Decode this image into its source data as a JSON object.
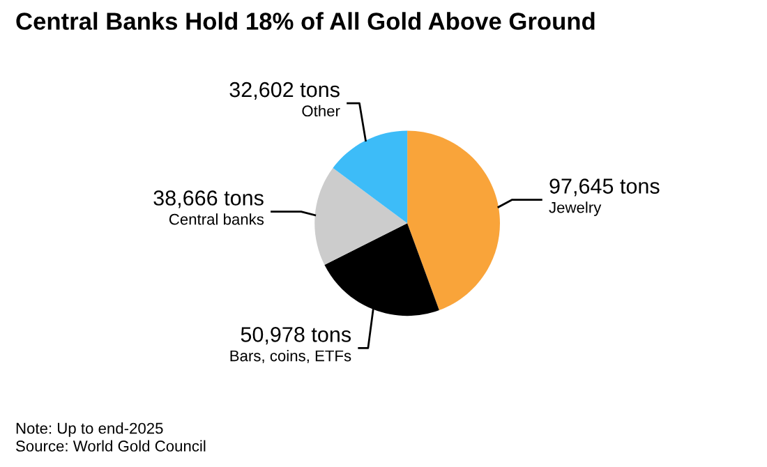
{
  "chart_data": {
    "type": "pie",
    "title": "Central Banks Hold 18% of All Gold Above Ground",
    "categories": [
      "Jewelry",
      "Bars, coins, ETFs",
      "Central banks",
      "Other"
    ],
    "values": [
      97645,
      50978,
      38666,
      32602
    ],
    "value_labels": [
      "97,645 tons",
      "50,978 tons",
      "38,666 tons",
      "32,602 tons"
    ],
    "colors": [
      "#f9a43a",
      "#000000",
      "#cccccc",
      "#3dbcf8"
    ],
    "annotations": [
      "Note: Up to end-2025",
      "Source: World Gold Council"
    ]
  }
}
